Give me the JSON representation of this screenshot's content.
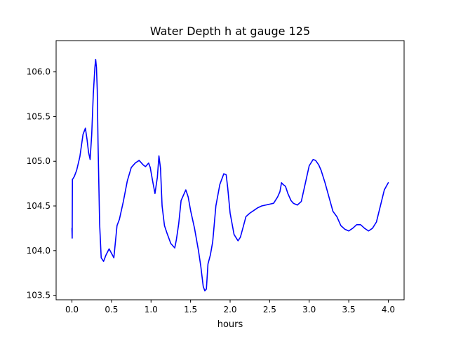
{
  "chart_data": {
    "type": "line",
    "title": "Water Depth h at gauge 125",
    "xlabel": "hours",
    "ylabel": "",
    "xlim": [
      -0.2,
      4.2
    ],
    "ylim": [
      103.45,
      106.35
    ],
    "xticks": [
      0.0,
      0.5,
      1.0,
      1.5,
      2.0,
      2.5,
      3.0,
      3.5,
      4.0
    ],
    "xtick_labels": [
      "0.0",
      "0.5",
      "1.0",
      "1.5",
      "2.0",
      "2.5",
      "3.0",
      "3.5",
      "4.0"
    ],
    "yticks": [
      103.5,
      104.0,
      104.5,
      105.0,
      105.5,
      106.0
    ],
    "ytick_labels": [
      "103.5",
      "104.0",
      "104.5",
      "105.0",
      "105.5",
      "106.0"
    ],
    "grid": false,
    "legend": "none",
    "series": [
      {
        "color": "#0000ff",
        "x": [
          0.0,
          0.003,
          0.006,
          0.01,
          0.03,
          0.06,
          0.1,
          0.14,
          0.17,
          0.19,
          0.21,
          0.23,
          0.25,
          0.27,
          0.29,
          0.3,
          0.31,
          0.32,
          0.33,
          0.35,
          0.37,
          0.4,
          0.43,
          0.47,
          0.5,
          0.53,
          0.55,
          0.57,
          0.6,
          0.65,
          0.7,
          0.75,
          0.8,
          0.85,
          0.9,
          0.93,
          0.97,
          0.99,
          1.02,
          1.05,
          1.08,
          1.1,
          1.12,
          1.14,
          1.17,
          1.2,
          1.25,
          1.3,
          1.32,
          1.35,
          1.38,
          1.41,
          1.44,
          1.47,
          1.5,
          1.55,
          1.6,
          1.63,
          1.66,
          1.68,
          1.7,
          1.72,
          1.75,
          1.78,
          1.82,
          1.87,
          1.92,
          1.95,
          1.97,
          2.0,
          2.05,
          2.1,
          2.13,
          2.17,
          2.2,
          2.25,
          2.3,
          2.35,
          2.4,
          2.45,
          2.5,
          2.55,
          2.6,
          2.63,
          2.65,
          2.67,
          2.7,
          2.73,
          2.77,
          2.8,
          2.85,
          2.9,
          2.95,
          3.0,
          3.05,
          3.08,
          3.12,
          3.15,
          3.2,
          3.25,
          3.3,
          3.35,
          3.4,
          3.45,
          3.5,
          3.55,
          3.6,
          3.65,
          3.7,
          3.75,
          3.8,
          3.85,
          3.9,
          3.95,
          4.0
        ],
        "y": [
          104.25,
          104.14,
          104.8,
          104.8,
          104.83,
          104.9,
          105.05,
          105.3,
          105.37,
          105.25,
          105.1,
          105.02,
          105.3,
          105.75,
          106.05,
          106.14,
          106.05,
          105.8,
          105.2,
          104.3,
          103.92,
          103.88,
          103.95,
          104.02,
          103.97,
          103.92,
          104.1,
          104.28,
          104.35,
          104.55,
          104.78,
          104.93,
          104.98,
          105.01,
          104.96,
          104.94,
          104.98,
          104.93,
          104.78,
          104.64,
          104.82,
          105.06,
          104.92,
          104.5,
          104.28,
          104.2,
          104.08,
          104.03,
          104.12,
          104.3,
          104.56,
          104.62,
          104.68,
          104.6,
          104.45,
          104.25,
          104.0,
          103.82,
          103.6,
          103.55,
          103.57,
          103.85,
          103.95,
          104.1,
          104.5,
          104.74,
          104.86,
          104.85,
          104.7,
          104.42,
          104.18,
          104.11,
          104.15,
          104.28,
          104.38,
          104.42,
          104.45,
          104.48,
          104.5,
          104.51,
          104.52,
          104.53,
          104.6,
          104.66,
          104.76,
          104.74,
          104.72,
          104.64,
          104.56,
          104.53,
          104.51,
          104.55,
          104.75,
          104.95,
          105.02,
          105.01,
          104.96,
          104.9,
          104.76,
          104.6,
          104.44,
          104.38,
          104.28,
          104.24,
          104.22,
          104.25,
          104.29,
          104.29,
          104.25,
          104.22,
          104.25,
          104.32,
          104.5,
          104.68,
          104.76
        ]
      }
    ]
  }
}
